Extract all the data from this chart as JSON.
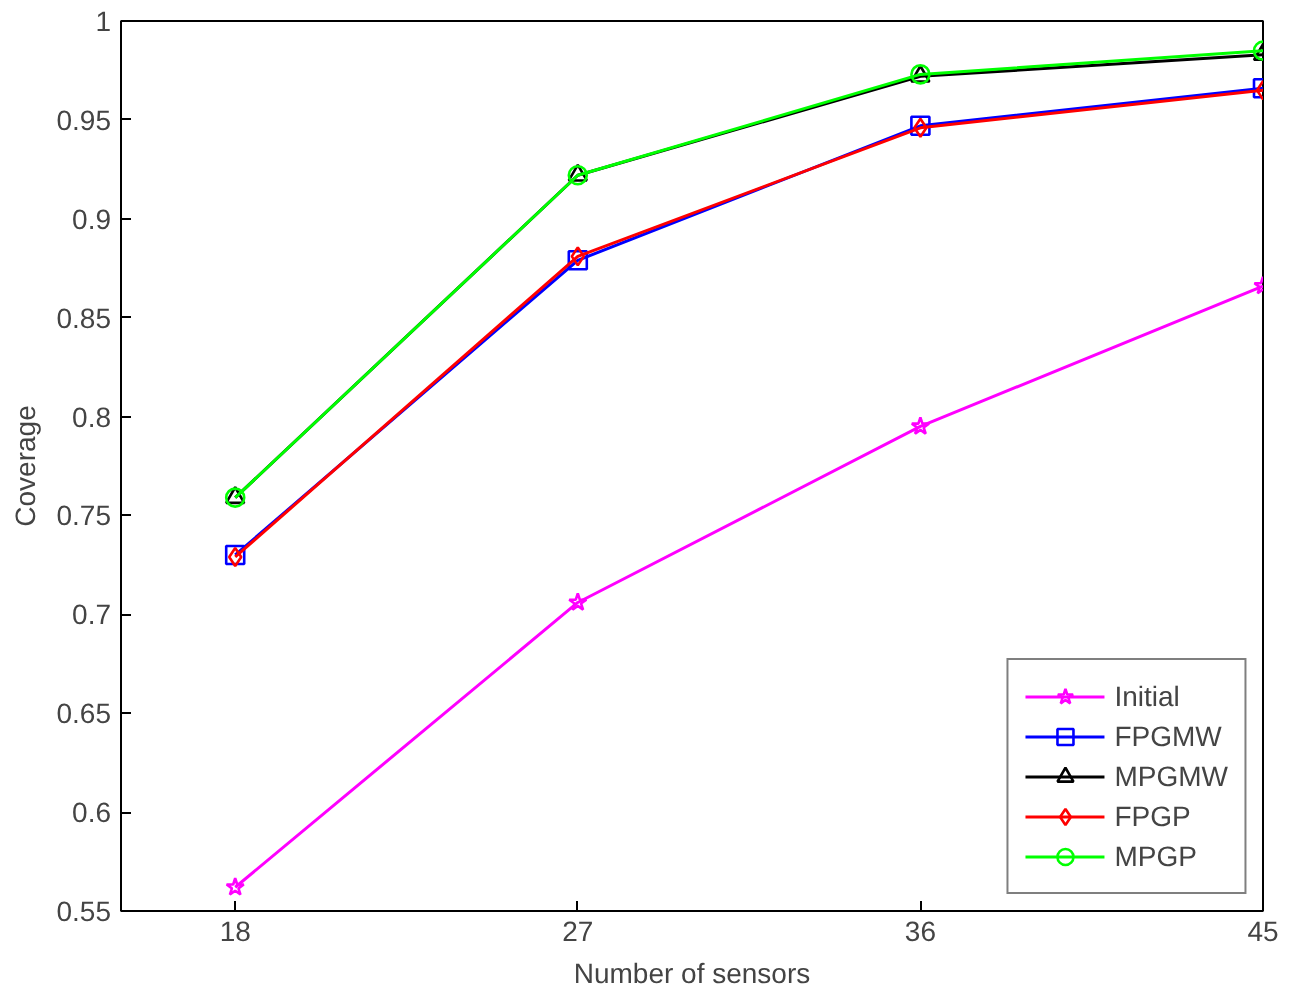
{
  "chart_data": {
    "type": "line",
    "xlabel": "Number of sensors",
    "ylabel": "Coverage",
    "x": [
      18,
      27,
      36,
      45
    ],
    "xlim": [
      15,
      45
    ],
    "xticks": [
      18,
      27,
      36,
      45
    ],
    "ylim": [
      0.55,
      1
    ],
    "yticks": [
      0.55,
      0.6,
      0.65,
      0.7,
      0.75,
      0.8,
      0.85,
      0.9,
      0.95,
      {
        "value": 1,
        "label": "1"
      }
    ],
    "grid": false,
    "legend": "bottom right",
    "line_style": "solid",
    "series": [
      {
        "name": "Initial",
        "color": "#ff00ff",
        "marker": "star",
        "values": [
          0.562,
          0.706,
          0.795,
          0.866
        ]
      },
      {
        "name": "FPGMW",
        "color": "#0000ff",
        "marker": "square",
        "values": [
          0.73,
          0.879,
          0.947,
          0.966
        ]
      },
      {
        "name": "MPGMW",
        "color": "#000000",
        "marker": "triangle",
        "values": [
          0.759,
          0.922,
          0.972,
          0.983
        ]
      },
      {
        "name": "FPGP",
        "color": "#ff0000",
        "marker": "diamond",
        "values": [
          0.729,
          0.881,
          0.946,
          0.965
        ]
      },
      {
        "name": "MPGP",
        "color": "#00ff00",
        "marker": "circle",
        "values": [
          0.759,
          0.922,
          0.973,
          0.985
        ]
      }
    ]
  }
}
